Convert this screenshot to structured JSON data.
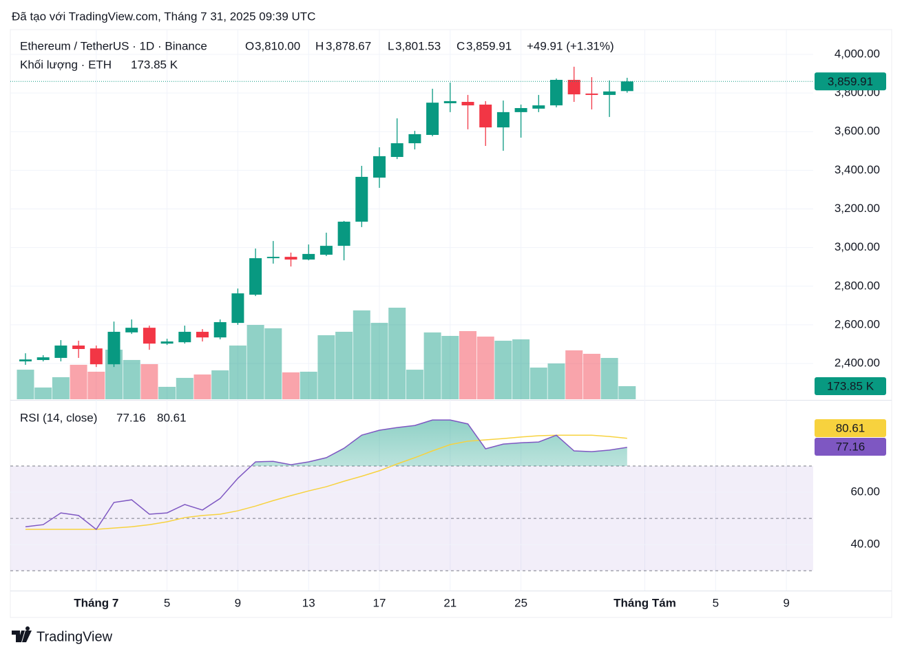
{
  "header": {
    "created": "Đã tạo với TradingView.com, Tháng 7 31, 2025 09:39 UTC"
  },
  "footer": {
    "logo": "TradingView"
  },
  "chart_data": [
    {
      "type": "candlestick",
      "title": "Ethereum / TetherUS · 1D · Binance",
      "categories": [
        null,
        null,
        null,
        null,
        "Tháng 7",
        null,
        null,
        null,
        "5",
        null,
        null,
        null,
        "9",
        null,
        null,
        null,
        "13",
        null,
        null,
        null,
        "17",
        null,
        null,
        null,
        "21",
        null,
        null,
        null,
        "25",
        null,
        null,
        null,
        null,
        null,
        null,
        "Tháng Tám",
        null,
        null,
        null,
        "5",
        null,
        null,
        null,
        "9"
      ],
      "open": [
        2411,
        2418,
        2429,
        2493,
        2478,
        2396,
        2561,
        2585,
        2503,
        2510,
        2564,
        2535,
        2610,
        2756,
        2945,
        2952,
        2938,
        2963,
        3009,
        3134,
        3362,
        3469,
        3540,
        3583,
        3747,
        3754,
        3740,
        3622,
        3701,
        3719,
        3736,
        3868,
        3797,
        3790,
        3810.0,
        null,
        null,
        null,
        null,
        null,
        null,
        null,
        null,
        null
      ],
      "high": [
        2453,
        2443,
        2521,
        2518,
        2493,
        2617,
        2628,
        2596,
        2528,
        2596,
        2578,
        2628,
        2788,
        2995,
        3034,
        2974,
        3016,
        3077,
        3138,
        3423,
        3519,
        3669,
        3604,
        3822,
        3854,
        3790,
        3758,
        3761,
        3740,
        3790,
        3875,
        3936,
        3882,
        3865,
        3878.67,
        null,
        null,
        null,
        null,
        null,
        null,
        null,
        null,
        null
      ],
      "low": [
        2393,
        2411,
        2411,
        2429,
        2382,
        2382,
        2553,
        2471,
        2496,
        2503,
        2514,
        2525,
        2600,
        2749,
        2917,
        2902,
        2934,
        2956,
        2934,
        3106,
        3309,
        3458,
        3508,
        3576,
        3701,
        3612,
        3526,
        3501,
        3569,
        3701,
        3726,
        3754,
        3715,
        3676,
        3801.53,
        null,
        null,
        null,
        null,
        null,
        null,
        null,
        null,
        null
      ],
      "close": [
        2421,
        2432,
        2493,
        2475,
        2396,
        2564,
        2585,
        2503,
        2514,
        2564,
        2535,
        2614,
        2763,
        2945,
        2952,
        2938,
        2967,
        3009,
        3134,
        3366,
        3473,
        3540,
        3587,
        3750,
        3758,
        3736,
        3622,
        3701,
        3722,
        3736,
        3868,
        3793,
        3790,
        3808,
        3859.91,
        null,
        null,
        null,
        null,
        null,
        null,
        null,
        null,
        null
      ],
      "up_color": "#089981",
      "down_color": "#f23645",
      "ylim": [
        2215,
        4121
      ],
      "yticks": [
        {
          "value": 2400,
          "label": "2,400.00"
        },
        {
          "value": 2600,
          "label": "2,600.00"
        },
        {
          "value": 2800,
          "label": "2,800.00"
        },
        {
          "value": 3000,
          "label": "3,000.00"
        },
        {
          "value": 3200,
          "label": "3,200.00"
        },
        {
          "value": 3400,
          "label": "3,400.00"
        },
        {
          "value": 3600,
          "label": "3,600.00"
        },
        {
          "value": 3800,
          "label": "3,800.00"
        },
        {
          "value": 4000,
          "label": "4,000.00"
        }
      ],
      "grid": true,
      "legend_labels": {
        "open": "O",
        "high": "H",
        "low": "L",
        "close": "C"
      },
      "value_labels": {
        "open": "3,810.00",
        "high": "3,878.67",
        "low": "3,801.53",
        "close": "3,859.91"
      },
      "change": "+49.91 (+1.31%)"
    },
    {
      "type": "bar",
      "title": "Khối lượng · ETH",
      "values": [
        393,
        156,
        293,
        458,
        366,
        659,
        522,
        467,
        165,
        284,
        329,
        384,
        714,
        988,
        943,
        357,
        366,
        851,
        897,
        1181,
        1016,
        1217,
        393,
        888,
        842,
        906,
        833,
        778,
        796,
        421,
        476,
        650,
        604,
        549,
        173.85,
        null,
        null,
        null,
        null,
        null,
        null,
        null,
        null,
        null
      ],
      "value_label": "173.85 K"
    },
    {
      "type": "line",
      "title": "RSI (14, close)",
      "series": [
        {
          "color": "#7e57c2",
          "values": [
            46.8,
            47.6,
            52.1,
            51.1,
            45.8,
            56.1,
            57.1,
            51.6,
            52.1,
            55.3,
            53.2,
            57.6,
            65.3,
            71.6,
            71.8,
            70.5,
            71.6,
            73.2,
            76.8,
            81.8,
            83.7,
            84.7,
            85.5,
            87.6,
            87.6,
            86.1,
            76.6,
            78.4,
            78.9,
            79.2,
            81.8,
            75.8,
            75.5,
            76.1,
            77.16,
            null,
            null,
            null,
            null,
            null,
            null,
            null,
            null,
            null
          ]
        },
        {
          "color": "#f7d23e",
          "values": [
            45.8,
            45.8,
            45.8,
            45.8,
            45.8,
            46.3,
            46.8,
            47.6,
            48.7,
            50.3,
            51.1,
            51.6,
            52.9,
            54.7,
            56.8,
            58.7,
            60.5,
            62.1,
            64.2,
            66.1,
            68.2,
            70.8,
            73.2,
            75.8,
            78.2,
            79.5,
            80.0,
            80.5,
            81.1,
            81.6,
            81.8,
            81.8,
            81.8,
            81.3,
            80.61,
            null,
            null,
            null,
            null,
            null,
            null,
            null,
            null,
            null
          ]
        }
      ],
      "ylim": [
        22.4,
        92.9
      ],
      "yticks": [
        {
          "value": 40,
          "label": "40.00"
        },
        {
          "value": 60,
          "label": "60.00"
        }
      ],
      "levels": [
        30,
        50,
        70
      ]
    }
  ]
}
